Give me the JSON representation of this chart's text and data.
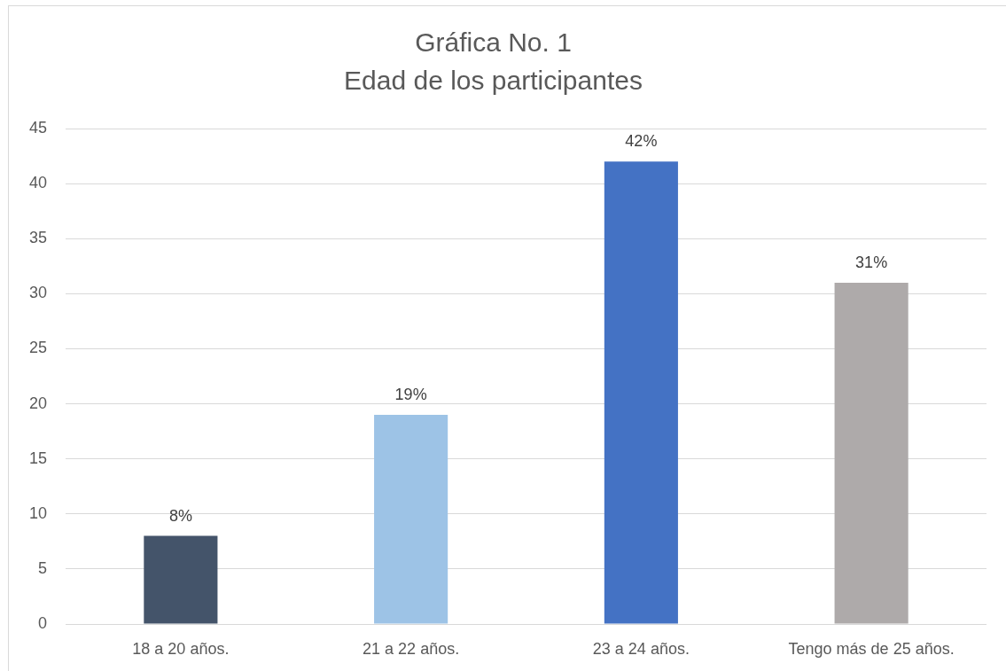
{
  "chart_data": {
    "type": "bar",
    "title": "Gráfica No. 1",
    "subtitle": "Edad de los participantes",
    "categories": [
      "18 a 20 años.",
      "21 a 22 años.",
      "23 a 24 años.",
      "Tengo más de 25 años."
    ],
    "values": [
      8,
      19,
      42,
      31
    ],
    "colors": [
      "#44546a",
      "#9dc3e6",
      "#4472c4",
      "#aeaaaa"
    ],
    "value_labels": [
      "8%",
      "19%",
      "42%",
      "31%"
    ],
    "ylim": [
      0,
      45
    ],
    "yticks": [
      0,
      5,
      10,
      15,
      20,
      25,
      30,
      35,
      40,
      45
    ],
    "grid": "y"
  }
}
